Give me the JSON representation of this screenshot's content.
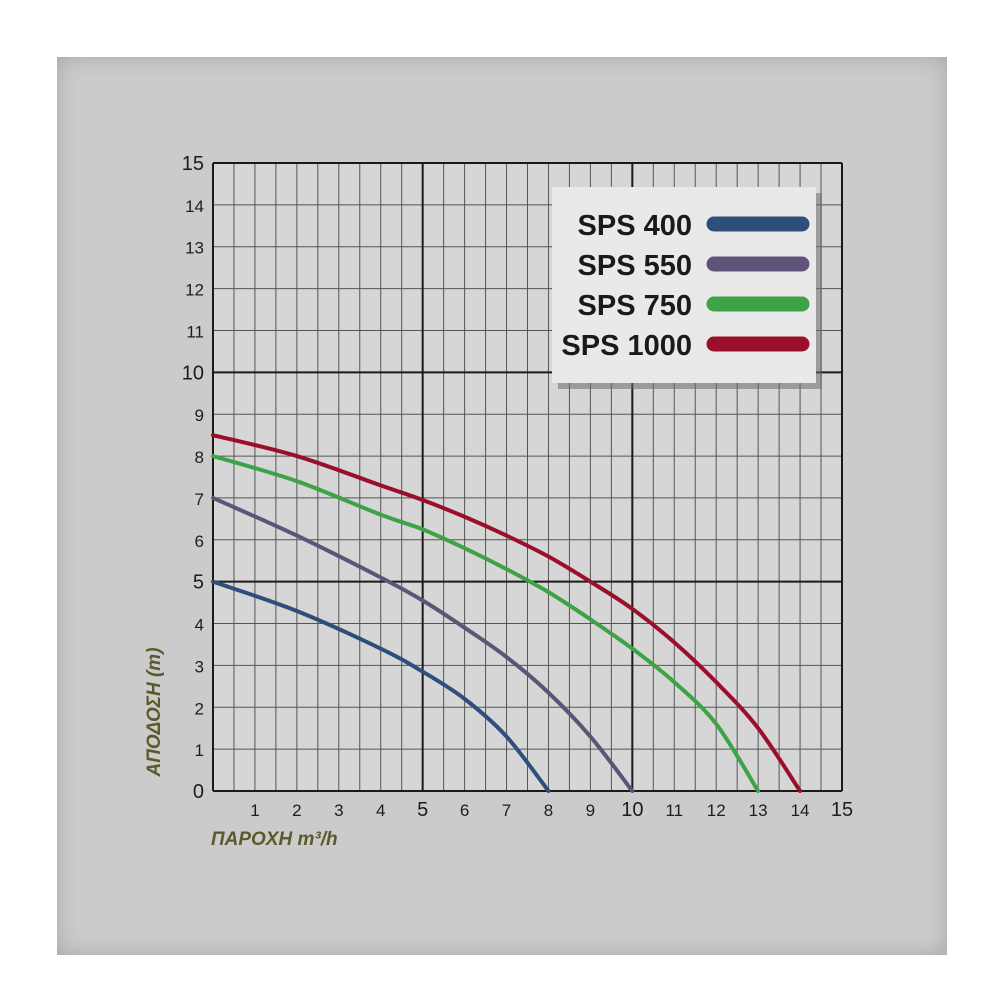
{
  "colors": {
    "panel_background": "#cbcbcb",
    "plot_background": "#d6d6d6",
    "axis_title": "#5a5a2c",
    "grid_minor": "#555555",
    "grid_major": "#1a1a1a"
  },
  "chart_data": {
    "type": "line",
    "title": "",
    "xlabel": "ΠΑΡΟΧΗ m³/h",
    "ylabel": "ΑΠΟΔΟΣΗ (m)",
    "xlim": [
      0,
      15
    ],
    "ylim": [
      0,
      15
    ],
    "x_ticks": [
      "1",
      "2",
      "3",
      "4",
      "5",
      "6",
      "7",
      "8",
      "9",
      "10",
      "11",
      "12",
      "13",
      "14",
      "15"
    ],
    "y_ticks": [
      "0",
      "1",
      "2",
      "3",
      "4",
      "5",
      "6",
      "7",
      "8",
      "9",
      "10",
      "11",
      "12",
      "13",
      "14",
      "15"
    ],
    "grid": true,
    "legend_position": "top-right",
    "series": [
      {
        "name": "SPS 400",
        "color": "#2e4f7c",
        "points": [
          [
            0,
            5.0
          ],
          [
            2,
            4.3
          ],
          [
            4,
            3.4
          ],
          [
            5,
            2.85
          ],
          [
            6,
            2.2
          ],
          [
            7,
            1.3
          ],
          [
            8,
            0
          ]
        ]
      },
      {
        "name": "SPS 550",
        "color": "#5f5478",
        "points": [
          [
            0,
            7.0
          ],
          [
            2,
            6.1
          ],
          [
            4,
            5.1
          ],
          [
            5,
            4.55
          ],
          [
            6,
            3.9
          ],
          [
            7,
            3.2
          ],
          [
            8,
            2.35
          ],
          [
            9,
            1.3
          ],
          [
            10,
            0
          ]
        ]
      },
      {
        "name": "SPS 750",
        "color": "#3ea247",
        "points": [
          [
            0,
            8.0
          ],
          [
            2,
            7.4
          ],
          [
            4,
            6.6
          ],
          [
            5,
            6.25
          ],
          [
            6,
            5.8
          ],
          [
            7,
            5.3
          ],
          [
            8,
            4.75
          ],
          [
            9,
            4.1
          ],
          [
            10,
            3.4
          ],
          [
            11,
            2.6
          ],
          [
            12,
            1.6
          ],
          [
            13,
            0
          ]
        ]
      },
      {
        "name": "SPS 1000",
        "color": "#9a0f2a",
        "points": [
          [
            0,
            8.5
          ],
          [
            2,
            8.0
          ],
          [
            4,
            7.3
          ],
          [
            5,
            6.95
          ],
          [
            6,
            6.55
          ],
          [
            7,
            6.1
          ],
          [
            8,
            5.6
          ],
          [
            9,
            5.0
          ],
          [
            10,
            4.35
          ],
          [
            11,
            3.55
          ],
          [
            12,
            2.6
          ],
          [
            13,
            1.5
          ],
          [
            14,
            0
          ]
        ]
      }
    ]
  }
}
